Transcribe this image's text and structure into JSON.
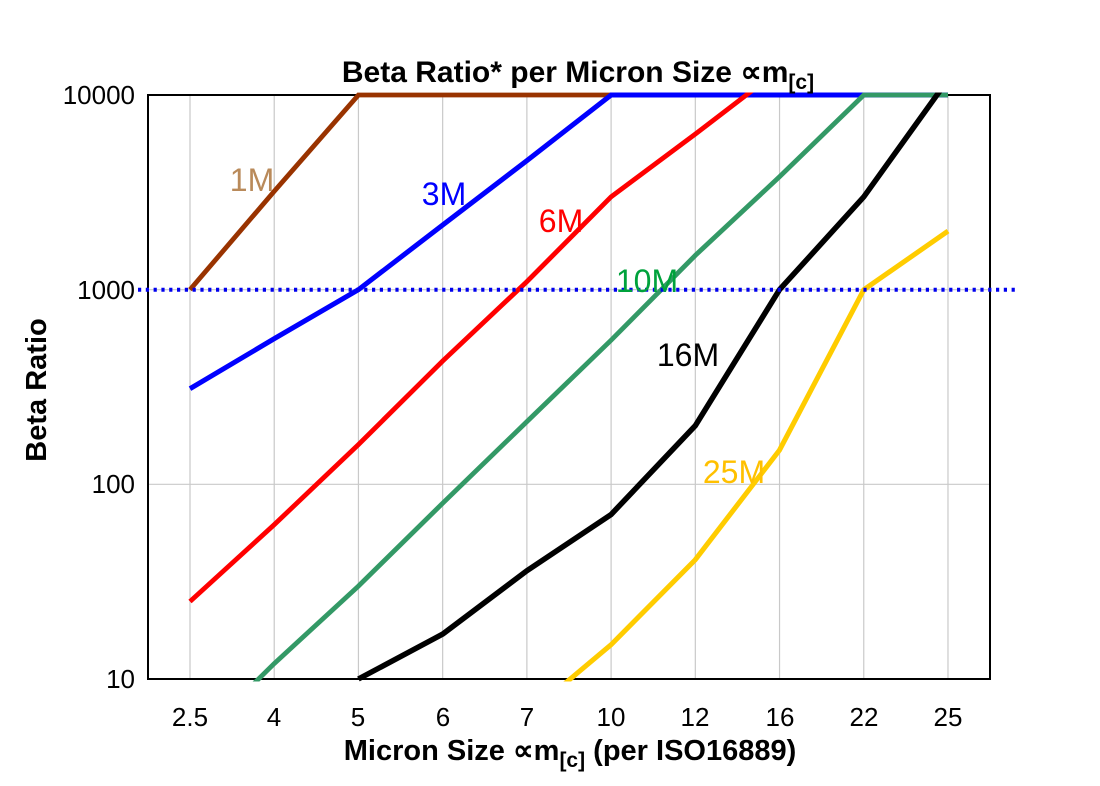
{
  "chart_data": {
    "type": "line",
    "title": {
      "full": "Beta Ratio* per Micron Size ∝m[c]",
      "pre": "Beta Ratio* per Micron Size ∝m",
      "sub": "[c]"
    },
    "ylabel": "Beta Ratio",
    "xlabel": {
      "full": "Micron Size ∝m[c] (per ISO16889)",
      "pre": "Micron Size ∝m",
      "sub": "[c]",
      "post": " (per ISO16889)"
    },
    "x_scale": "category",
    "y_scale": "log",
    "ylim": [
      10,
      10000
    ],
    "y_ticks": [
      "10",
      "100",
      "1000",
      "10000"
    ],
    "categories": [
      "2.5",
      "4",
      "5",
      "6",
      "7",
      "10",
      "12",
      "16",
      "22",
      "25"
    ],
    "grid": "on",
    "reference_line": {
      "value": 1000,
      "color": "#0000ee",
      "style": "dotted"
    },
    "series": [
      {
        "name": "1M",
        "color": "#993300",
        "label_color": "#b98a5a",
        "width": 4.8,
        "points": [
          [
            2.5,
            1000
          ],
          [
            4,
            3200
          ],
          [
            5,
            10000
          ],
          [
            6,
            10000
          ],
          [
            7,
            10000
          ],
          [
            10,
            10000
          ]
        ]
      },
      {
        "name": "3M",
        "color": "#0000ff",
        "label_color": "#0000ff",
        "width": 5,
        "points": [
          [
            2.5,
            310
          ],
          [
            4,
            560
          ],
          [
            5,
            1000
          ],
          [
            6,
            2150
          ],
          [
            7,
            4600
          ],
          [
            10,
            10000
          ],
          [
            12,
            10000
          ],
          [
            16,
            10000
          ],
          [
            22,
            10000
          ],
          [
            25,
            10000
          ]
        ]
      },
      {
        "name": "6M",
        "color": "#ff0000",
        "label_color": "#ff0000",
        "width": 4.8,
        "points": [
          [
            2.5,
            25
          ],
          [
            4,
            62
          ],
          [
            5,
            160
          ],
          [
            6,
            430
          ],
          [
            7,
            1100
          ],
          [
            10,
            3000
          ],
          [
            12,
            6300
          ],
          [
            16,
            13500
          ]
        ]
      },
      {
        "name": "10M",
        "color": "#339966",
        "label_color": "#00a23c",
        "width": 4.8,
        "points": [
          [
            2.5,
            4.5
          ],
          [
            4,
            12
          ],
          [
            5,
            30
          ],
          [
            6,
            80
          ],
          [
            7,
            210
          ],
          [
            10,
            550
          ],
          [
            12,
            1500
          ],
          [
            16,
            3800
          ],
          [
            22,
            10000
          ],
          [
            25,
            10000
          ]
        ]
      },
      {
        "name": "16M",
        "color": "#000000",
        "label_color": "#000000",
        "width": 5.5,
        "points": [
          [
            5,
            10
          ],
          [
            6,
            17
          ],
          [
            7,
            36
          ],
          [
            10,
            70
          ],
          [
            12,
            200
          ],
          [
            16,
            1000
          ],
          [
            22,
            3000
          ],
          [
            25,
            12000
          ]
        ]
      },
      {
        "name": "25M",
        "color": "#ffcc00",
        "label_color": "#ffc000",
        "width": 5,
        "points": [
          [
            7,
            6.5
          ],
          [
            10,
            15
          ],
          [
            12,
            41
          ],
          [
            16,
            150
          ],
          [
            22,
            1000
          ],
          [
            25,
            2000
          ]
        ]
      }
    ]
  }
}
